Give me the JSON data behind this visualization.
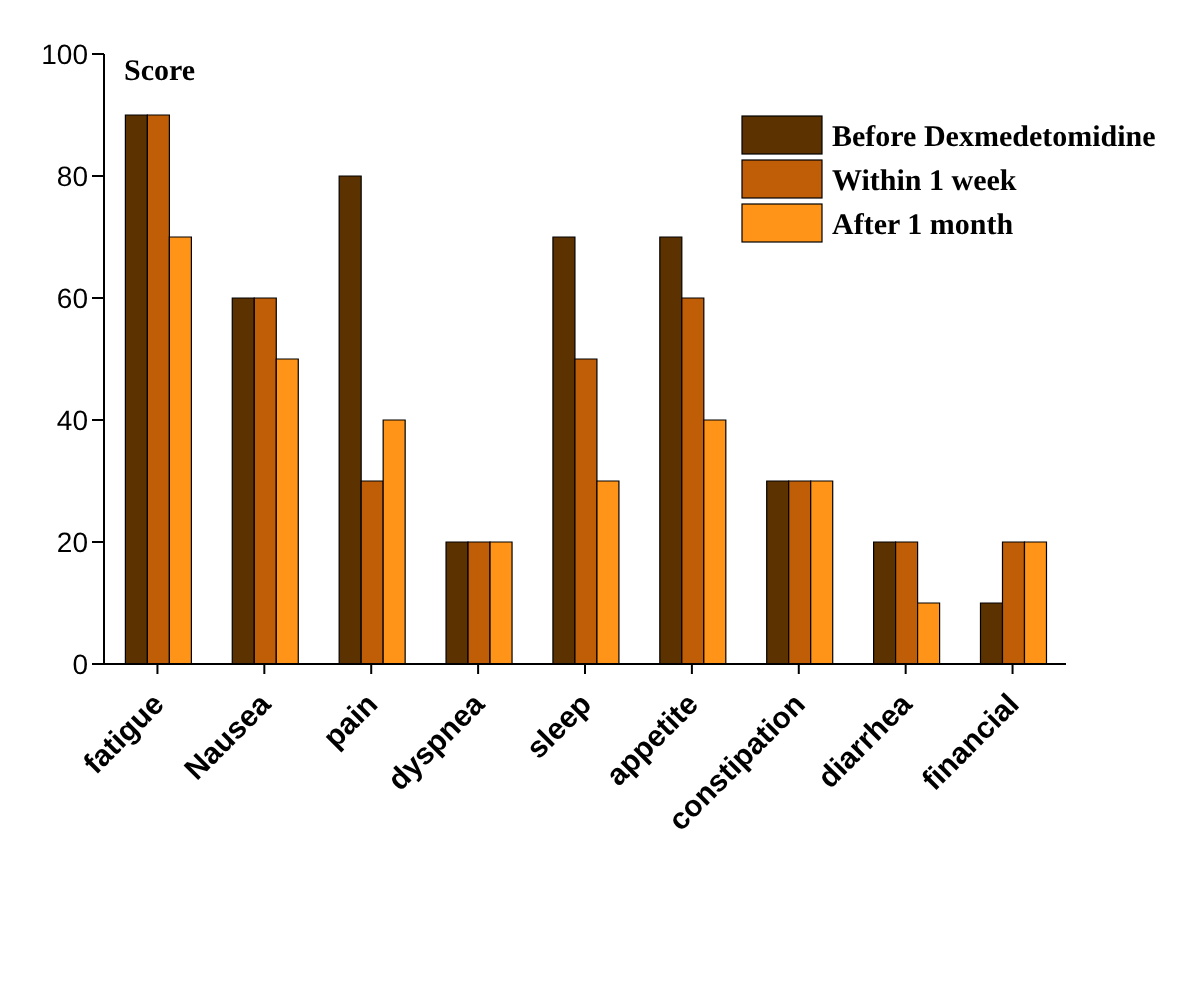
{
  "chart_data": {
    "type": "bar",
    "ylabel": "Score",
    "categories": [
      "fatigue",
      "Nausea",
      "pain",
      "dyspnea",
      "sleep",
      "appetite",
      "constipation",
      "diarrhea",
      "financial"
    ],
    "series": [
      {
        "name": "Before Dexmedetomidine",
        "color": "#5c3300",
        "values": [
          90,
          60,
          80,
          20,
          70,
          70,
          30,
          20,
          10
        ]
      },
      {
        "name": "Within 1 week",
        "color": "#c05e08",
        "values": [
          90,
          60,
          30,
          20,
          50,
          60,
          30,
          20,
          20
        ]
      },
      {
        "name": "After 1 month",
        "color": "#ff9419",
        "values": [
          70,
          50,
          40,
          20,
          30,
          40,
          30,
          10,
          20
        ]
      }
    ],
    "ylim": [
      0,
      100
    ],
    "yticks": [
      0,
      20,
      40,
      60,
      80,
      100
    ],
    "grid": false,
    "legend": "top right"
  }
}
